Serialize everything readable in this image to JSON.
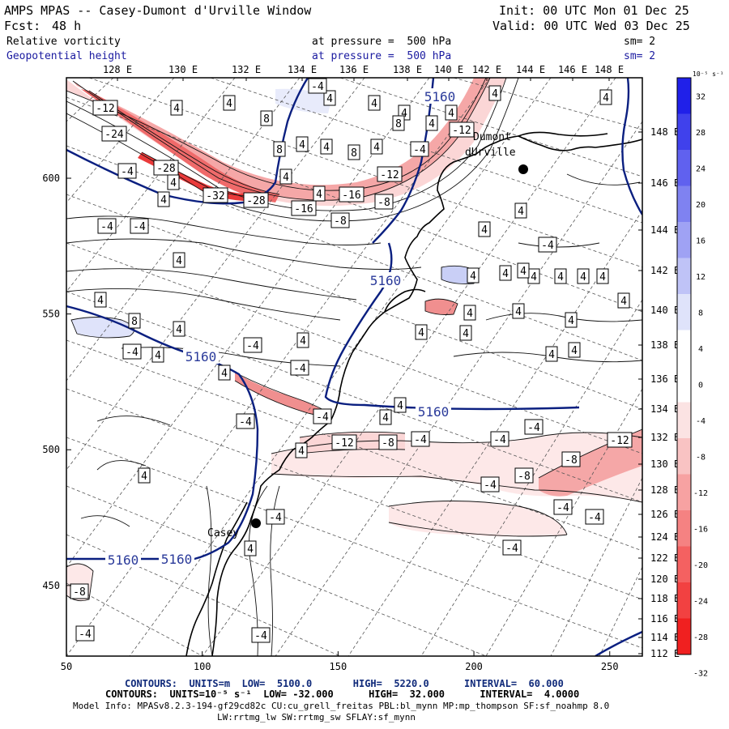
{
  "header": {
    "title": "AMPS MPAS -- Casey-Dumont d'Urville Window",
    "init": "Init: 00 UTC Mon 01 Dec 25",
    "fcst_label": "Fcst:",
    "fcst_value": "48 h",
    "valid": "Valid: 00 UTC Wed 03 Dec 25",
    "field1": "Relative vorticity",
    "field1_pressure": "at pressure =  500 hPa",
    "field1_sm": "sm= 2",
    "field2": "Geopotential height",
    "field2_pressure": "at pressure =  500 hPa",
    "field2_sm": "sm= 2"
  },
  "map": {
    "top_lon_labels": [
      "128 E",
      "130 E",
      "132 E",
      "134 E",
      "136 E",
      "138 E",
      "140 E",
      "142 E",
      "144 E",
      "146 E",
      "148 E"
    ],
    "right_lon_labels": [
      "148 E",
      "146 E",
      "144 E",
      "142 E",
      "140 E",
      "138 E",
      "136 E",
      "134 E",
      "132 E",
      "130 E",
      "128 E",
      "126 E",
      "124 E",
      "122 E",
      "120 E",
      "118 E",
      "116 E",
      "114 E",
      "112 E"
    ],
    "x_ticks": [
      50,
      100,
      150,
      200,
      250
    ],
    "y_ticks": [
      450,
      500,
      550,
      600
    ],
    "stations": [
      {
        "name": "Casey"
      },
      {
        "name": "Dumont d'Urville",
        "line1": "Dumont",
        "line2": "dUrville"
      }
    ],
    "height_contour_label": "5160",
    "height_contour_labels": [
      "5160",
      "5160",
      "5160",
      "5160",
      "5160",
      "5160"
    ],
    "vorticity_labels": [
      "-12",
      "-24",
      "-28",
      "-32",
      "-28",
      "-16",
      "-16",
      "-12",
      "-8",
      "-8",
      "-12",
      "-4",
      "-4",
      "-4",
      "-4",
      "4",
      "4",
      "4",
      "4",
      "4",
      "4",
      "4",
      "8",
      "8",
      "8",
      "8",
      "8",
      "4",
      "4",
      "4",
      "4",
      "4",
      "4",
      "4",
      "4",
      "4",
      "4",
      "4",
      "4",
      "4",
      "4",
      "4",
      "4",
      "4",
      "4",
      "4",
      "4",
      "4",
      "4",
      "4",
      "4",
      "4",
      "4",
      "4",
      "4",
      "-4",
      "-4",
      "-4",
      "-4",
      "-4",
      "-4",
      "-12",
      "-8",
      "-4",
      "-4",
      "-4",
      "-4",
      "-8",
      "-8",
      "-12",
      "-4",
      "-4",
      "-4",
      "-4",
      "-4",
      "-8",
      "-4",
      "4",
      "4",
      "4",
      "4",
      "4",
      "4",
      "4",
      "-4",
      "4",
      "4"
    ]
  },
  "colorbar": {
    "unit": "10⁻⁵ s⁻¹",
    "labels": [
      "32",
      "28",
      "24",
      "20",
      "16",
      "12",
      "8",
      "4",
      "0",
      "-4",
      "-8",
      "-12",
      "-16",
      "-20",
      "-24",
      "-28",
      "-32"
    ],
    "colors": {
      "blue_max": "#0000e6",
      "blue_min": "#dfe3fa",
      "white": "#ffffff",
      "red_min": "#fbe3e3",
      "red_max": "#ee0000"
    }
  },
  "footer": {
    "line1_contours": "CONTOURS:  UNITS=m  LOW=  5100.0       HIGH=  5220.0      INTERVAL=  60.000",
    "line2_contours": "CONTOURS:  UNITS=10⁻⁵ s⁻¹  LOW= -32.000      HIGH=  32.000      INTERVAL=  4.0000",
    "model_info": "Model Info: MPASv8.2.3-194-gf29cd82c CU:cu_grell_freitas PBL:bl_mynn MP:mp_thompson SF:sf_noahmp 8.0",
    "model_info2": "LW:rrtmg_lw SW:rrtmg_sw SFLAY:sf_mynn"
  },
  "colors": {
    "navy_contour": "#0a1f80",
    "title_blue": "#1a1aa0",
    "coast": "#000000"
  }
}
